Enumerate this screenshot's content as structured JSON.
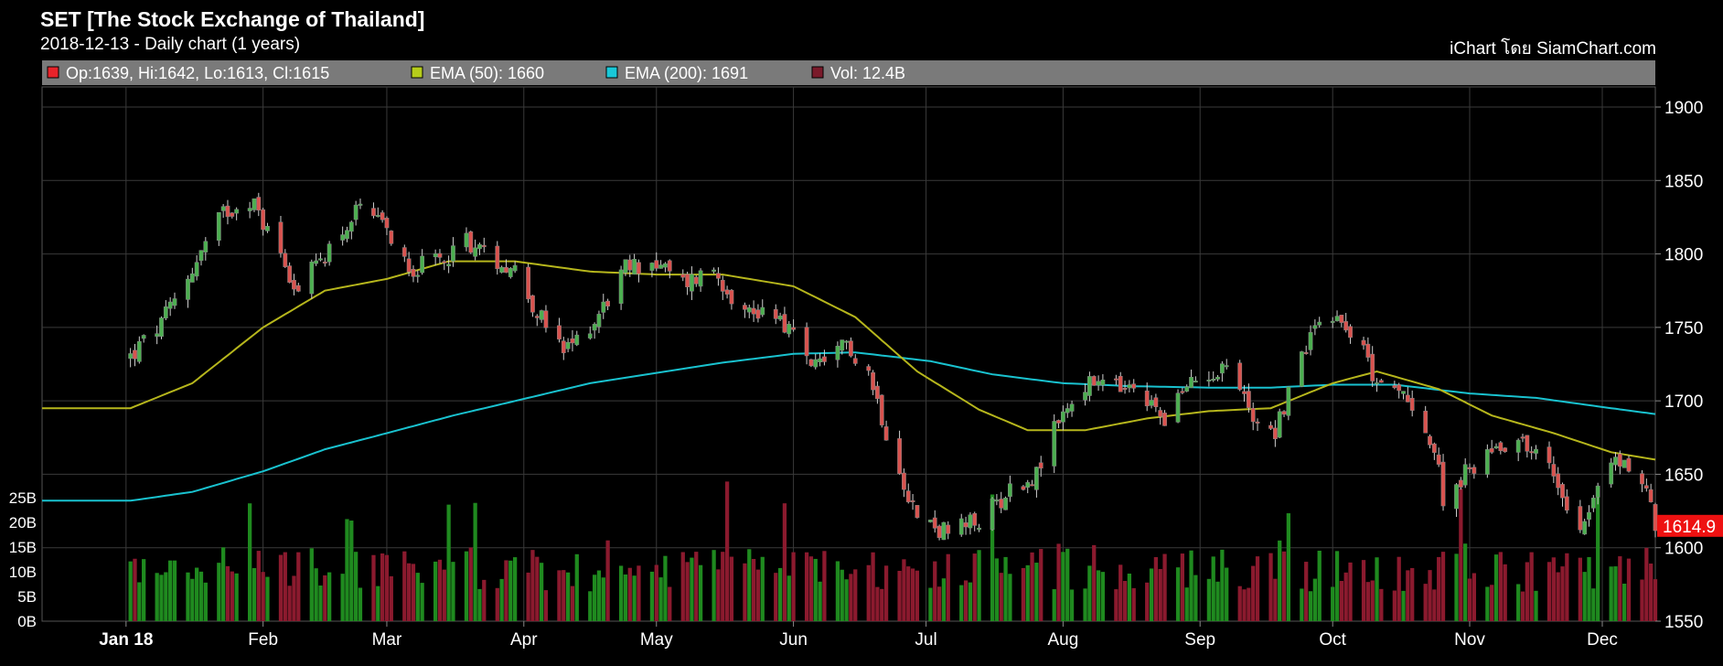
{
  "header": {
    "title": "SET [The Stock Exchange of Thailand]",
    "subtitle": "2018-12-13 - Daily chart (1 years)",
    "brand": "iChart โดย SiamChart.com"
  },
  "legend": [
    {
      "color": "#e8232a",
      "text": "Op:1639, Hi:1642, Lo:1613, Cl:1615"
    },
    {
      "color": "#b6cc1a",
      "text": "EMA (50): 1660"
    },
    {
      "color": "#19c8d8",
      "text": "EMA (200): 1691"
    },
    {
      "color": "#7a1a2a",
      "text": "Vol: 12.4B"
    }
  ],
  "colors": {
    "up": "#4caf50",
    "down": "#d9534f",
    "ema50": "#b6b61c",
    "ema200": "#19c2cf",
    "vol_up": "#1f8a1f",
    "vol_down": "#8b1a2e",
    "grid": "#3a3a3a",
    "legend_bg": "#7a7a7a",
    "last_price_bg": "#ee1111"
  },
  "chart_data": {
    "type": "candlestick",
    "title": "SET [The Stock Exchange of Thailand]",
    "ylim": [
      1550,
      1920
    ],
    "yticks": [
      1550,
      1600,
      1650,
      1700,
      1750,
      1800,
      1850,
      1900
    ],
    "volume_ticks": [
      "0B",
      "5B",
      "10B",
      "15B",
      "20B",
      "25B"
    ],
    "volume_ylim": [
      0,
      28
    ],
    "months": [
      "Jan 18",
      "Feb",
      "Mar",
      "Apr",
      "May",
      "Jun",
      "Jul",
      "Aug",
      "Sep",
      "Oct",
      "Nov",
      "Dec"
    ],
    "last_price": "1614.9",
    "price_anchors": [
      [
        "2018-01-02",
        1730
      ],
      [
        "2018-01-09",
        1752
      ],
      [
        "2018-01-16",
        1790
      ],
      [
        "2018-01-23",
        1828
      ],
      [
        "2018-01-29",
        1838
      ],
      [
        "2018-02-05",
        1800
      ],
      [
        "2018-02-09",
        1775
      ],
      [
        "2018-02-16",
        1805
      ],
      [
        "2018-02-23",
        1830
      ],
      [
        "2018-03-01",
        1815
      ],
      [
        "2018-03-07",
        1790
      ],
      [
        "2018-03-13",
        1795
      ],
      [
        "2018-03-19",
        1810
      ],
      [
        "2018-03-23",
        1800
      ],
      [
        "2018-03-30",
        1790
      ],
      [
        "2018-04-05",
        1755
      ],
      [
        "2018-04-10",
        1732
      ],
      [
        "2018-04-17",
        1755
      ],
      [
        "2018-04-24",
        1790
      ],
      [
        "2018-04-30",
        1795
      ],
      [
        "2018-05-07",
        1780
      ],
      [
        "2018-05-14",
        1790
      ],
      [
        "2018-05-21",
        1760
      ],
      [
        "2018-05-28",
        1762
      ],
      [
        "2018-06-04",
        1730
      ],
      [
        "2018-06-08",
        1720
      ],
      [
        "2018-06-13",
        1740
      ],
      [
        "2018-06-18",
        1720
      ],
      [
        "2018-06-22",
        1680
      ],
      [
        "2018-06-25",
        1655
      ],
      [
        "2018-06-29",
        1620
      ],
      [
        "2018-07-06",
        1610
      ],
      [
        "2018-07-13",
        1618
      ],
      [
        "2018-07-20",
        1640
      ],
      [
        "2018-07-26",
        1650
      ],
      [
        "2018-07-31",
        1688
      ],
      [
        "2018-08-06",
        1710
      ],
      [
        "2018-08-10",
        1712
      ],
      [
        "2018-08-17",
        1705
      ],
      [
        "2018-08-24",
        1690
      ],
      [
        "2018-08-31",
        1715
      ],
      [
        "2018-09-07",
        1725
      ],
      [
        "2018-09-13",
        1690
      ],
      [
        "2018-09-18",
        1680
      ],
      [
        "2018-09-24",
        1730
      ],
      [
        "2018-09-28",
        1760
      ],
      [
        "2018-10-04",
        1755
      ],
      [
        "2018-10-10",
        1720
      ],
      [
        "2018-10-15",
        1705
      ],
      [
        "2018-10-19",
        1700
      ],
      [
        "2018-10-24",
        1665
      ],
      [
        "2018-10-26",
        1635
      ],
      [
        "2018-10-31",
        1650
      ],
      [
        "2018-11-06",
        1668
      ],
      [
        "2018-11-12",
        1675
      ],
      [
        "2018-11-19",
        1655
      ],
      [
        "2018-11-26",
        1615
      ],
      [
        "2018-11-30",
        1640
      ],
      [
        "2018-12-04",
        1660
      ],
      [
        "2018-12-07",
        1655
      ],
      [
        "2018-12-11",
        1640
      ],
      [
        "2018-12-13",
        1615
      ]
    ],
    "ema50_anchors": [
      [
        "2018-01-02",
        1695
      ],
      [
        "2018-01-16",
        1712
      ],
      [
        "2018-02-01",
        1750
      ],
      [
        "2018-02-15",
        1775
      ],
      [
        "2018-03-01",
        1783
      ],
      [
        "2018-03-15",
        1795
      ],
      [
        "2018-03-30",
        1795
      ],
      [
        "2018-04-16",
        1788
      ],
      [
        "2018-05-01",
        1786
      ],
      [
        "2018-05-16",
        1786
      ],
      [
        "2018-06-01",
        1778
      ],
      [
        "2018-06-15",
        1757
      ],
      [
        "2018-06-29",
        1720
      ],
      [
        "2018-07-13",
        1694
      ],
      [
        "2018-07-24",
        1680
      ],
      [
        "2018-08-06",
        1680
      ],
      [
        "2018-08-20",
        1688
      ],
      [
        "2018-09-03",
        1693
      ],
      [
        "2018-09-17",
        1695
      ],
      [
        "2018-10-01",
        1712
      ],
      [
        "2018-10-11",
        1720
      ],
      [
        "2018-10-25",
        1708
      ],
      [
        "2018-11-06",
        1690
      ],
      [
        "2018-11-20",
        1678
      ],
      [
        "2018-12-03",
        1665
      ],
      [
        "2018-12-13",
        1660
      ]
    ],
    "ema200_anchors": [
      [
        "2018-01-02",
        1632
      ],
      [
        "2018-01-16",
        1638
      ],
      [
        "2018-02-01",
        1652
      ],
      [
        "2018-02-15",
        1667
      ],
      [
        "2018-03-01",
        1678
      ],
      [
        "2018-03-16",
        1690
      ],
      [
        "2018-04-02",
        1702
      ],
      [
        "2018-04-16",
        1712
      ],
      [
        "2018-05-01",
        1719
      ],
      [
        "2018-05-16",
        1726
      ],
      [
        "2018-06-01",
        1732
      ],
      [
        "2018-06-15",
        1733
      ],
      [
        "2018-07-02",
        1727
      ],
      [
        "2018-07-16",
        1718
      ],
      [
        "2018-08-01",
        1712
      ],
      [
        "2018-08-16",
        1710
      ],
      [
        "2018-09-03",
        1709
      ],
      [
        "2018-09-17",
        1709
      ],
      [
        "2018-10-01",
        1711
      ],
      [
        "2018-10-15",
        1711
      ],
      [
        "2018-11-01",
        1705
      ],
      [
        "2018-11-16",
        1702
      ],
      [
        "2018-12-03",
        1695
      ],
      [
        "2018-12-13",
        1691
      ]
    ]
  }
}
